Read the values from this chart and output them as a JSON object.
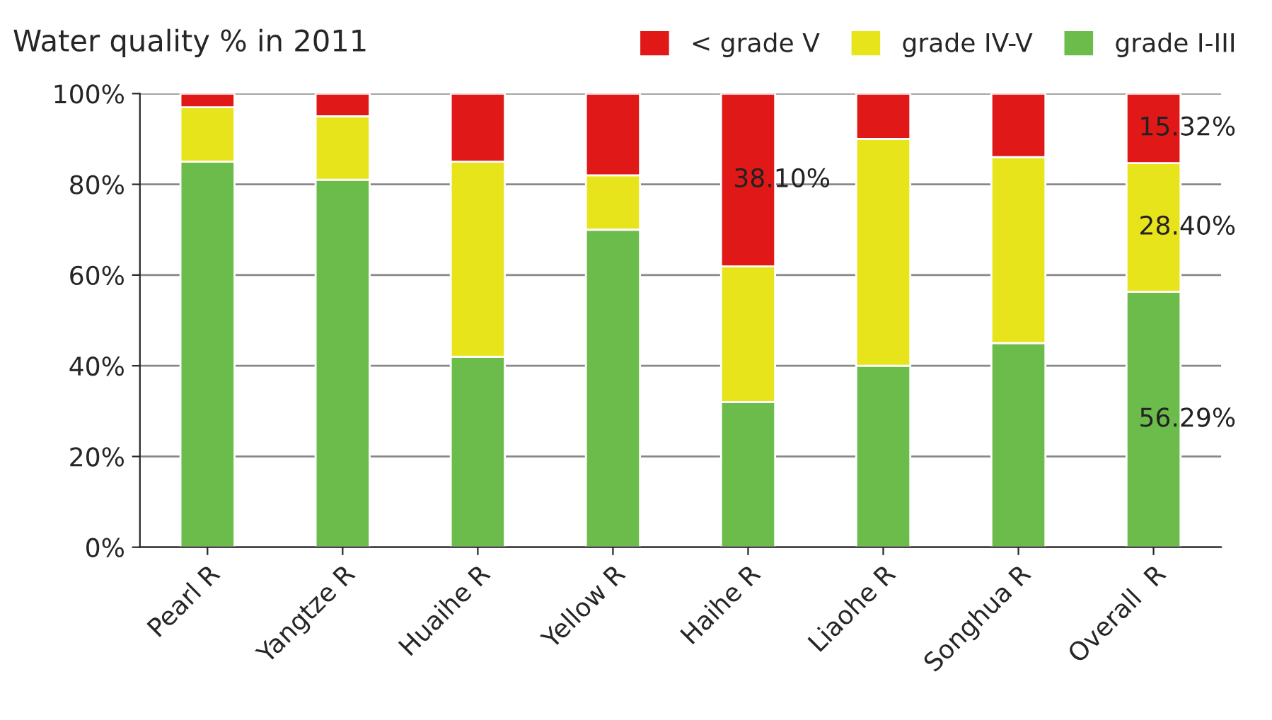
{
  "chart_data": {
    "type": "bar",
    "stacked": true,
    "title": "Water quality % in 2011",
    "categories": [
      "Pearl R",
      "Yangtze R",
      "Huaihe R",
      "Yellow R",
      "Haihe R",
      "Liaohe R",
      "Songhua R",
      "Overall  R"
    ],
    "series": [
      {
        "name": "grade I-III",
        "color": "#6cbc4c",
        "values": [
          85,
          81,
          42,
          70,
          32,
          40,
          45,
          56.29
        ],
        "value_labels": [
          null,
          null,
          null,
          null,
          null,
          null,
          null,
          "56.29%"
        ]
      },
      {
        "name": "grade IV-V",
        "color": "#e8e41c",
        "values": [
          12,
          14,
          43,
          12,
          29.9,
          50,
          41,
          28.4
        ],
        "value_labels": [
          null,
          null,
          null,
          null,
          null,
          null,
          null,
          "28.40%"
        ]
      },
      {
        "name": "< grade V",
        "color": "#e01818",
        "values": [
          3,
          5,
          15,
          18,
          38.1,
          10,
          14,
          15.32
        ],
        "value_labels": [
          null,
          null,
          null,
          null,
          "38.10%",
          null,
          null,
          "15.32%"
        ]
      }
    ],
    "ylim": [
      0,
      100
    ],
    "yticks": [
      {
        "value": 0,
        "label": "0%"
      },
      {
        "value": 20,
        "label": "20%"
      },
      {
        "value": 40,
        "label": "40%"
      },
      {
        "value": 60,
        "label": "60%"
      },
      {
        "value": 80,
        "label": "80%"
      },
      {
        "value": 100,
        "label": "100%"
      }
    ],
    "grid": "y",
    "legend": "top right"
  }
}
